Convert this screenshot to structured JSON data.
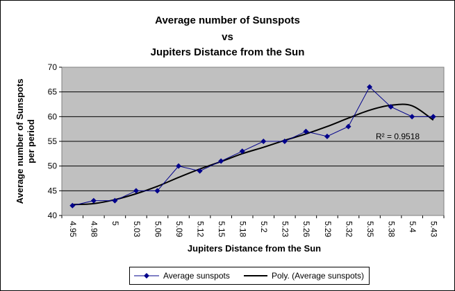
{
  "chart_data": {
    "type": "line",
    "title_lines": [
      "Average number of Sunspots",
      "vs",
      "Jupiters Distance from the Sun"
    ],
    "xlabel": "Jupiters Distance from the Sun",
    "ylabel_lines": [
      "Average number of Sunspots",
      "per period"
    ],
    "categories": [
      "4.95",
      "4.98",
      "5",
      "5.03",
      "5.06",
      "5.09",
      "5.12",
      "5.15",
      "5.18",
      "5.2",
      "5.23",
      "5.26",
      "5.29",
      "5.32",
      "5.35",
      "5.38",
      "5.4",
      "5.43"
    ],
    "y_ticks": [
      "40",
      "45",
      "50",
      "55",
      "60",
      "65",
      "70"
    ],
    "ylim": [
      40,
      70
    ],
    "grid": true,
    "series": [
      {
        "name": "Average sunspots",
        "values": [
          42,
          43,
          43,
          45,
          45,
          50,
          49,
          51,
          53,
          55,
          55,
          57,
          56,
          58,
          66,
          62,
          60,
          60
        ],
        "color": "#00008b",
        "marker": "diamond"
      }
    ],
    "trendline": {
      "name": "Poly. (Average sunspots)",
      "type": "polynomial",
      "points": [
        42.2,
        42.4,
        43.2,
        44.4,
        45.9,
        47.7,
        49.4,
        50.9,
        52.5,
        53.8,
        55.2,
        56.5,
        58.0,
        59.7,
        61.3,
        62.3,
        62.2,
        59.3
      ],
      "color": "#000000",
      "r_squared_label": "R² = 0.9518"
    },
    "legend": "bottom",
    "colors": {
      "plot_bg": "#c0c0c0",
      "grid": "#000000"
    }
  }
}
